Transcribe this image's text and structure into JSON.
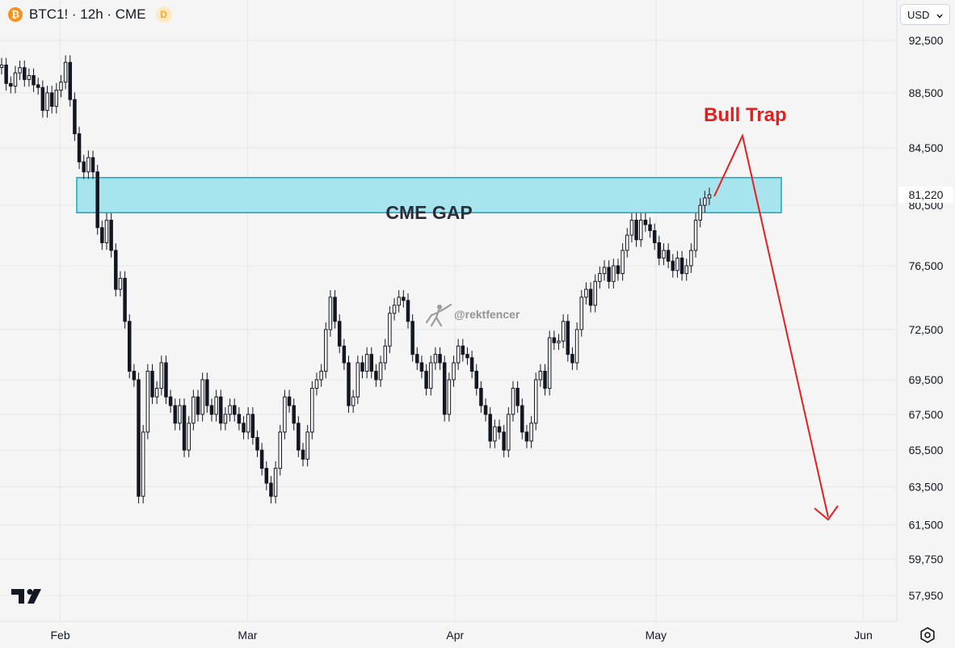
{
  "header": {
    "symbol_icon": "bitcoin-icon",
    "symbol_icon_glyph": "₿",
    "title": "BTC1! · 12h · CME",
    "badge": "D"
  },
  "currency": {
    "label": "USD",
    "icon": "chevron-down-icon"
  },
  "watermark": "@rektfencer",
  "colors": {
    "background": "#f5f5f5",
    "grid": "#e6e6e6",
    "candle": "#131722",
    "gap_fill": "#a8e4ee",
    "gap_border": "#13a9c7",
    "annotation": "#e41f1f"
  },
  "chart_data": {
    "type": "candlestick",
    "y_axis": {
      "ticks": [
        92500,
        88500,
        84500,
        80500,
        76500,
        72500,
        69500,
        67500,
        65500,
        63500,
        61500,
        59750,
        57950
      ],
      "tick_labels": [
        "92,500",
        "88,500",
        "84,500",
        "80,500",
        "76,500",
        "72,500",
        "69,500",
        "67,500",
        "65,500",
        "63,500",
        "61,500",
        "59,750",
        "57,950"
      ],
      "scale": "log",
      "range": [
        56700,
        95700
      ],
      "last_price": 81220,
      "last_price_label": "81,220"
    },
    "x_axis": {
      "ticks": [
        "2025-02-01",
        "2025-03-01",
        "2025-04-01",
        "2025-05-01",
        "2025-06-01"
      ],
      "tick_labels": [
        "Feb",
        "Mar",
        "Apr",
        "May",
        "Jun"
      ],
      "range": [
        "2025-01-23",
        "2025-06-06"
      ]
    },
    "grid": true,
    "annotations": {
      "gap_label": "CME GAP",
      "gap_range": [
        80000,
        82400
      ],
      "trap_label": "Bull Trap"
    },
    "close": [
      90600,
      89200,
      89000,
      90000,
      90400,
      89500,
      89800,
      89100,
      88900,
      87200,
      88500,
      87500,
      88700,
      89300,
      90800,
      88000,
      85500,
      83500,
      82800,
      83800,
      82800,
      79000,
      78000,
      79500,
      77500,
      75000,
      75700,
      73000,
      70000,
      69500,
      63000,
      66500,
      70000,
      68500,
      69000,
      70500,
      68500,
      68000,
      67000,
      68000,
      65500,
      67000,
      68500,
      67500,
      69500,
      68000,
      67500,
      68500,
      67000,
      67500,
      68000,
      67500,
      67000,
      66500,
      67500,
      66200,
      65500,
      64500,
      63700,
      63000,
      64500,
      66500,
      68500,
      68000,
      67000,
      65500,
      65000,
      66500,
      69000,
      69500,
      70000,
      72500,
      74500,
      73000,
      71500,
      70500,
      68000,
      68500,
      70500,
      70000,
      71000,
      70000,
      69500,
      70500,
      71500,
      73500,
      74000,
      74500,
      74300,
      73000,
      71000,
      70500,
      70000,
      69000,
      70500,
      71000,
      70500,
      67500,
      69500,
      70500,
      71500,
      71000,
      70800,
      70000,
      69000,
      68000,
      67500,
      66000,
      66800,
      66500,
      65500,
      67500,
      69000,
      68000,
      66500,
      66000,
      67000,
      69500,
      70000,
      69000,
      72000,
      71700,
      71800,
      73000,
      71000,
      70500,
      72500,
      74500,
      75000,
      74000,
      75500,
      76000,
      76400,
      75500,
      76500,
      76000,
      77500,
      78500,
      79500,
      78200,
      79500,
      79200,
      78800,
      78000,
      77000,
      77500,
      76800,
      76200,
      77000,
      76000,
      76500,
      77500,
      79500,
      80500,
      81000,
      81220
    ]
  }
}
